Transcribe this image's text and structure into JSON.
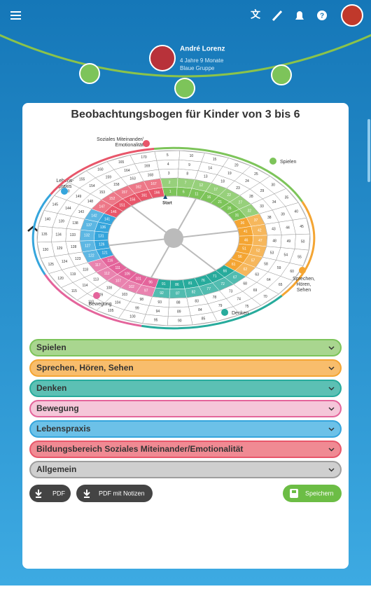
{
  "header": {
    "name": "André Lorenz",
    "age": "4 Jahre 9 Monate",
    "group": "Blaue Gruppe"
  },
  "card": {
    "title": "Beobachtungsbogen für Kinder von 3 bis 6"
  },
  "wheel": {
    "start_label": "Start",
    "domains": [
      {
        "lines": [
          "Spielen"
        ],
        "color": "#7dc45a"
      },
      {
        "lines": [
          "Sprechen,",
          "Hören,",
          "Sehen"
        ],
        "color": "#f4a533"
      },
      {
        "lines": [
          "Denken"
        ],
        "color": "#27ab9c"
      },
      {
        "lines": [
          "Bewegung"
        ],
        "color": "#e4649b"
      },
      {
        "lines": [
          "Lebens-",
          "praxis"
        ],
        "color": "#35a5dc"
      },
      {
        "lines": [
          "Soziales Miteinander/",
          "Emotionalität"
        ],
        "color": "#e8566a"
      }
    ],
    "cells": [
      1,
      2,
      3,
      4,
      5,
      6,
      7,
      8,
      9,
      10,
      11,
      12,
      13,
      14,
      15,
      16,
      17,
      18,
      19,
      20,
      21,
      22,
      23,
      24,
      25,
      26,
      27,
      28,
      29,
      30,
      31,
      32,
      33,
      34,
      35,
      36,
      37,
      38,
      39,
      40,
      41,
      42,
      43,
      44,
      45,
      46,
      47,
      48,
      49,
      50,
      51,
      52,
      53,
      54,
      55,
      56,
      57,
      58,
      59,
      60,
      61,
      62,
      63,
      64,
      65,
      66,
      67,
      68,
      69,
      70,
      71,
      72,
      73,
      74,
      75,
      76,
      77,
      78,
      79,
      80,
      81,
      82,
      83,
      84,
      85,
      86,
      87,
      88,
      89,
      90,
      91,
      92,
      93,
      94,
      95,
      96,
      97,
      98,
      99,
      100,
      101,
      102,
      103,
      104,
      105,
      106,
      107,
      108,
      109,
      110,
      111,
      112,
      113,
      114,
      115,
      116,
      117,
      118,
      119,
      120,
      121,
      122,
      123,
      124,
      125,
      126,
      127,
      128,
      129,
      130,
      131,
      132,
      133,
      134,
      135,
      136,
      137,
      138,
      139,
      140,
      141,
      142,
      143,
      144,
      145,
      146,
      147,
      148,
      149,
      150,
      151,
      152,
      153,
      154,
      155,
      156,
      157,
      158,
      159,
      160,
      161,
      162,
      163,
      164,
      165,
      166,
      167,
      168,
      169,
      170
    ]
  },
  "sections": [
    {
      "label": "Spielen",
      "fill": "#a9d68f",
      "border": "#7dc45a"
    },
    {
      "label": "Sprechen, Hören, Sehen",
      "fill": "#f8bd6c",
      "border": "#f4a533"
    },
    {
      "label": "Denken",
      "fill": "#5cc0b4",
      "border": "#27ab9c"
    },
    {
      "label": "Bewegung",
      "fill": "#f5c6d9",
      "border": "#e4649b"
    },
    {
      "label": "Lebenspraxis",
      "fill": "#6cc1e8",
      "border": "#35a5dc"
    },
    {
      "label": "Bildungsbereich Soziales Miteinander/Emotionalität",
      "fill": "#f08a93",
      "border": "#e8566a"
    },
    {
      "label": "Allgemein",
      "fill": "#cfcfcf",
      "border": "#9e9e9e"
    }
  ],
  "buttons": {
    "pdf": "PDF",
    "pdf_notes": "PDF mit Notizen",
    "save": "Speichern"
  }
}
